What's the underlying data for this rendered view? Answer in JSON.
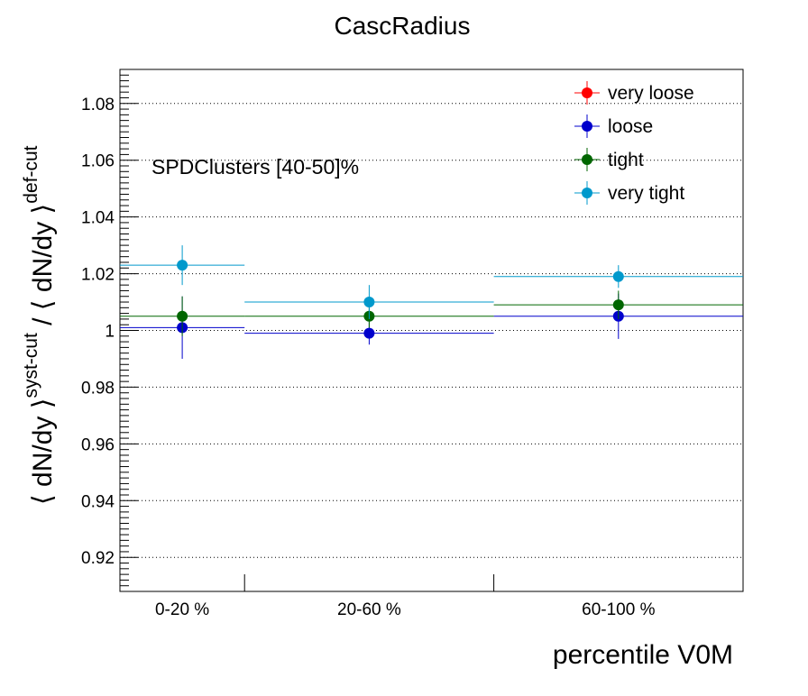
{
  "chart_data": {
    "type": "scatter",
    "title": "CascRadius",
    "xlabel": "percentile V0M",
    "ylabel": {
      "part1": "⟨ dN/dy ⟩",
      "sup1": "syst-cut",
      "sep": " / ",
      "part2": "⟨ dN/dy ⟩",
      "sup2": "def-cut"
    },
    "annotation": "SPDClusters [40-50]%",
    "categories": [
      "0-20 %",
      "20-60 %",
      "60-100 %"
    ],
    "bin_edges": [
      0,
      20,
      60,
      100
    ],
    "ylim": [
      0.908,
      1.092
    ],
    "yticks": [
      {
        "value": 0.92,
        "label": "0.92"
      },
      {
        "value": 0.94,
        "label": "0.94"
      },
      {
        "value": 0.96,
        "label": "0.96"
      },
      {
        "value": 0.98,
        "label": "0.98"
      },
      {
        "value": 1.0,
        "label": "1"
      },
      {
        "value": 1.02,
        "label": "1.02"
      },
      {
        "value": 1.04,
        "label": "1.04"
      },
      {
        "value": 1.06,
        "label": "1.06"
      },
      {
        "value": 1.08,
        "label": "1.08"
      }
    ],
    "grid": true,
    "legend_position": "top-right",
    "series": [
      {
        "name": "very loose",
        "color": "#ff0000",
        "values": [
          null,
          null,
          null
        ],
        "errors": [
          null,
          null,
          null
        ]
      },
      {
        "name": "loose",
        "color": "#0000cc",
        "values": [
          1.001,
          0.999,
          1.005
        ],
        "errors": [
          0.011,
          0.004,
          0.008
        ]
      },
      {
        "name": "tight",
        "color": "#006600",
        "values": [
          1.005,
          1.005,
          1.009
        ],
        "errors": [
          0.007,
          0.004,
          0.005
        ]
      },
      {
        "name": "very tight",
        "color": "#0099cc",
        "values": [
          1.023,
          1.01,
          1.019
        ],
        "errors": [
          0.007,
          0.006,
          0.004
        ]
      }
    ]
  }
}
